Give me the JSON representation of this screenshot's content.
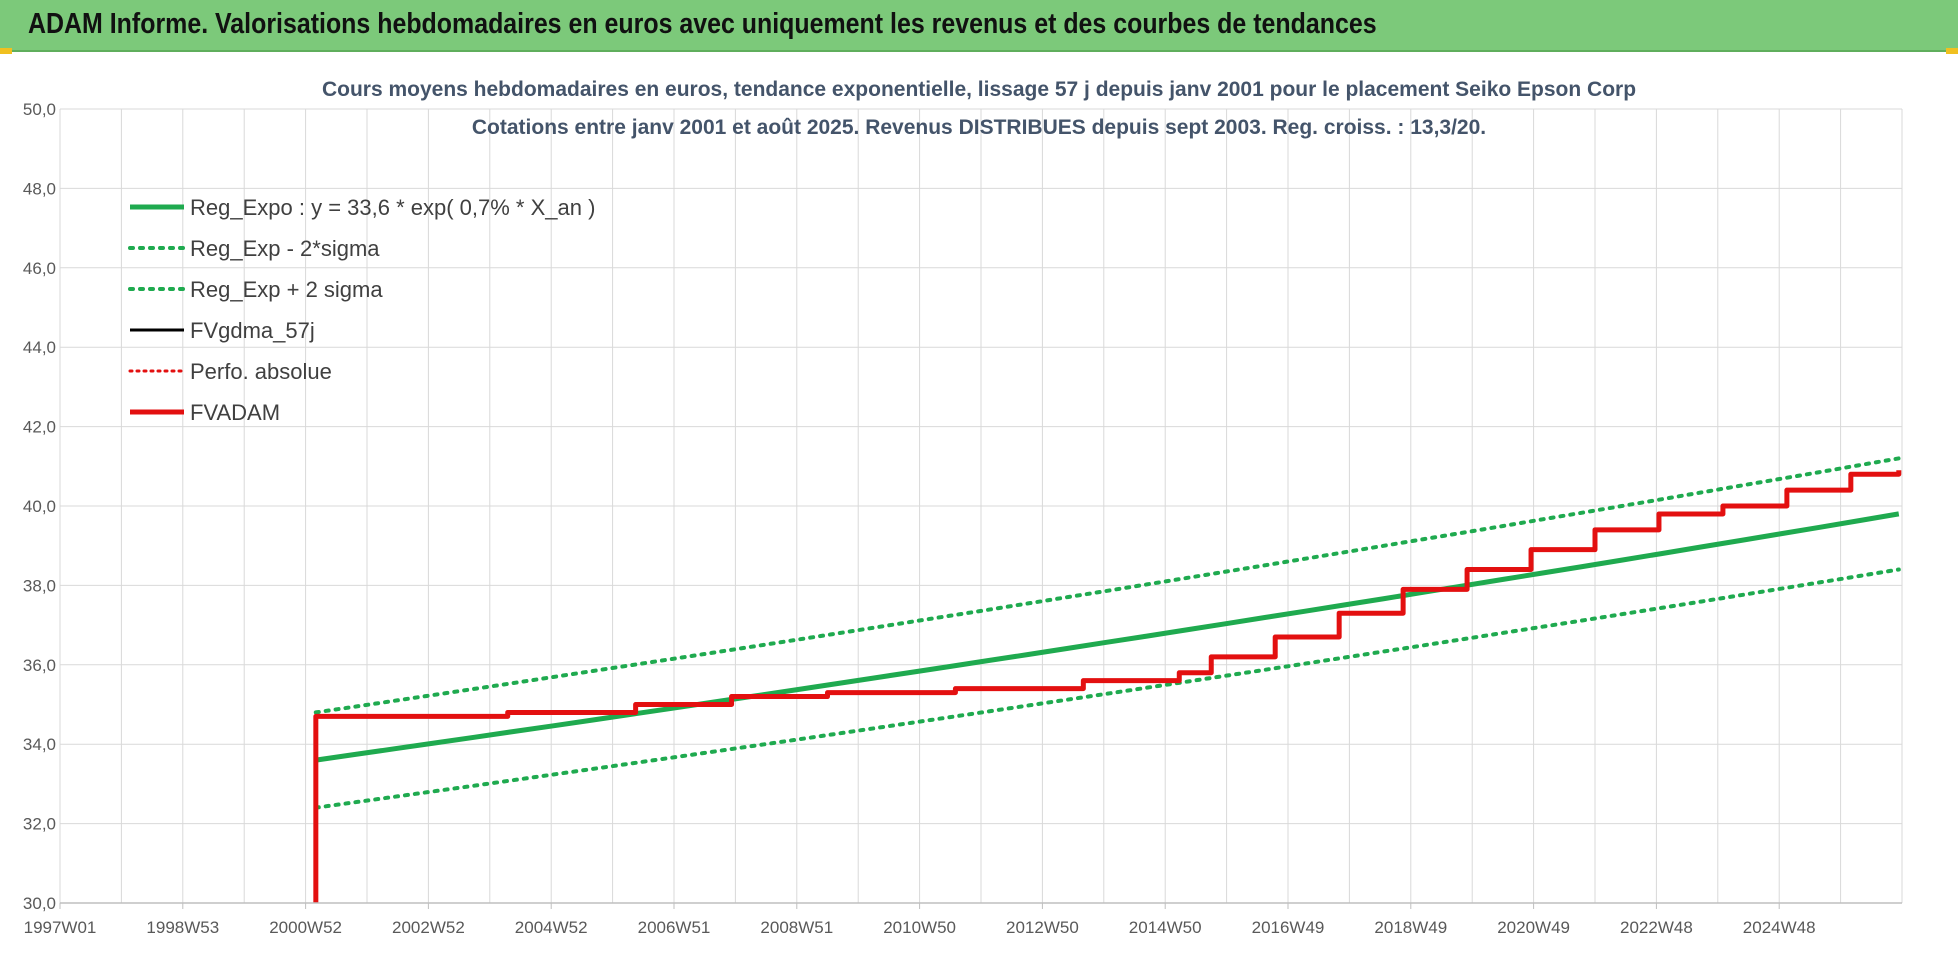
{
  "header": {
    "title": "ADAM Informe. Valorisations hebdomadaires en euros avec uniquement les revenus et des courbes de tendances"
  },
  "colors": {
    "header_bg": "#7cc97a",
    "trend_green": "#1faa4f",
    "adam_red": "#e31010",
    "grid": "#d9d9d9",
    "axis_text": "#595959"
  },
  "chart_data": {
    "type": "line",
    "title": "Cours moyens hebdomadaires en euros, tendance exponentielle, lissage 57 j depuis janv 2001  pour le placement Seiko Epson Corp",
    "subtitle": "Cotations entre janv 2001 et août 2025.  Revenus DISTRIBUES depuis sept 2003.  Reg. croiss. : 13,3/20.",
    "xlabel": "",
    "ylabel": "",
    "ylim": [
      30,
      50
    ],
    "xlim": [
      1997.0,
      2025.8
    ],
    "yticks": [
      "30,0",
      "32,0",
      "34,0",
      "36,0",
      "38,0",
      "40,0",
      "42,0",
      "44,0",
      "46,0",
      "48,0",
      "50,0"
    ],
    "xticks": [
      "1997W01",
      "1998W53",
      "2000W52",
      "2002W52",
      "2004W52",
      "2006W51",
      "2008W51",
      "2010W50",
      "2012W50",
      "2014W50",
      "2016W49",
      "2018W49",
      "2020W49",
      "2022W48",
      "2024W48"
    ],
    "grid": true,
    "legend_position": "top-left",
    "legend": [
      {
        "label": "Reg_Expo : y = 33,6 * exp( 0,7% *  X_an )",
        "color": "#1faa4f",
        "style": "solid",
        "width": 5
      },
      {
        "label": "Reg_Exp - 2*sigma",
        "color": "#1faa4f",
        "style": "dotted",
        "width": 4
      },
      {
        "label": "Reg_Exp + 2 sigma",
        "color": "#1faa4f",
        "style": "dotted",
        "width": 4
      },
      {
        "label": "FVgdma_57j",
        "color": "#000000",
        "style": "solid",
        "width": 3
      },
      {
        "label": "Perfo. absolue",
        "color": "#e31010",
        "style": "dotted",
        "width": 3
      },
      {
        "label": "FVADAM",
        "color": "#e31010",
        "style": "solid",
        "width": 5
      }
    ],
    "series": [
      {
        "name": "Reg_Expo : y = 33,6 * exp( 0,7% *  X_an )",
        "x": [
          2001.0,
          2025.75
        ],
        "values": [
          33.6,
          39.8
        ]
      },
      {
        "name": "Reg_Exp - 2*sigma",
        "x": [
          2001.0,
          2025.75
        ],
        "values": [
          32.4,
          38.4
        ]
      },
      {
        "name": "Reg_Exp + 2 sigma",
        "x": [
          2001.0,
          2025.75
        ],
        "values": [
          34.8,
          41.2
        ]
      },
      {
        "name": "FVADAM",
        "x": [
          2001.0,
          2001.0,
          2004.0,
          2006.0,
          2007.5,
          2009.0,
          2011.0,
          2013.0,
          2014.5,
          2015.0,
          2016.0,
          2017.0,
          2018.0,
          2019.0,
          2020.0,
          2021.0,
          2022.0,
          2023.0,
          2024.0,
          2025.0,
          2025.75
        ],
        "values": [
          30.0,
          34.7,
          34.8,
          35.0,
          35.2,
          35.3,
          35.4,
          35.6,
          35.8,
          36.2,
          36.7,
          37.3,
          37.9,
          38.4,
          38.9,
          39.4,
          39.8,
          40.0,
          40.4,
          40.8,
          40.9
        ]
      }
    ]
  }
}
